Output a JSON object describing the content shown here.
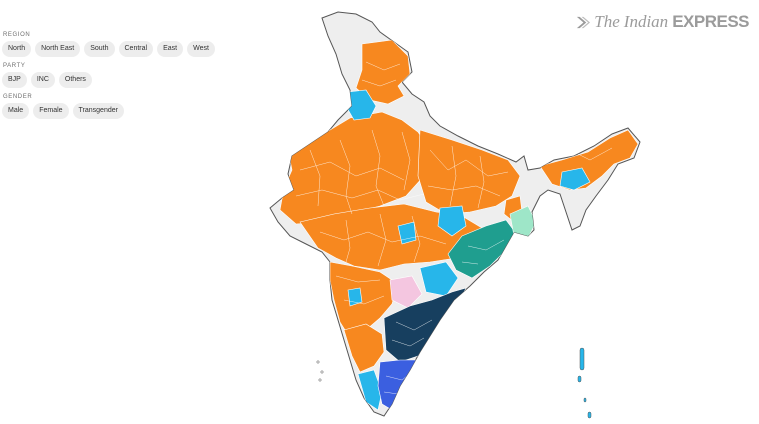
{
  "filters": {
    "region": {
      "label": "REGION",
      "options": [
        "North",
        "North East",
        "South",
        "Central",
        "East",
        "West"
      ]
    },
    "party": {
      "label": "PARTY",
      "options": [
        "BJP",
        "INC",
        "Others"
      ]
    },
    "gender": {
      "label": "GENDER",
      "options": [
        "Male",
        "Female",
        "Transgender"
      ]
    }
  },
  "logo": {
    "the": "The",
    "indian": "Indian",
    "express": "EXPRESS"
  },
  "map_colors": {
    "bjp": "#f7881f",
    "inc": "#27b6ea",
    "others_teal": "#1f9e8f",
    "others_navy": "#173f5f",
    "others_blue": "#3b5fe0",
    "others_pink": "#f4c6e0",
    "others_mint": "#9ee6c8",
    "no_data": "#eeeeee",
    "outline": "#555555",
    "border": "#ffffff"
  }
}
